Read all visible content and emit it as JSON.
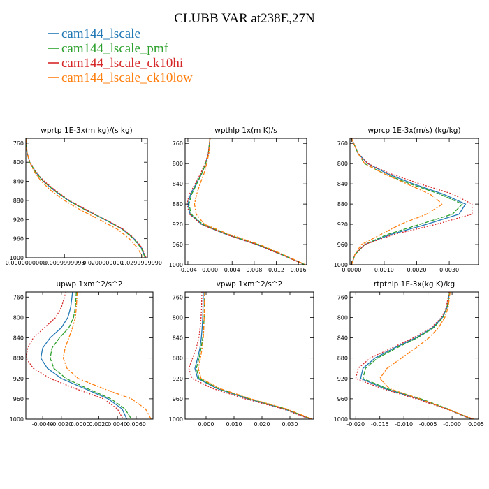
{
  "title": "CLUBB VAR at238E,27N",
  "legend": [
    {
      "name": "cam144_lscale",
      "color": "#1f77b4"
    },
    {
      "name": "cam144_lscale_pmf",
      "color": "#2ca02c"
    },
    {
      "name": "cam144_lscale_ck10hi",
      "color": "#d62728"
    },
    {
      "name": "cam144_lscale_ck10low",
      "color": "#ff7f0e"
    }
  ],
  "chart_data": [
    {
      "type": "line",
      "title": "wprtp  1E-3x(m kg)/(s kg)",
      "xlim": [
        0.0,
        0.0315
      ],
      "ylim": [
        1000,
        750
      ],
      "xticks": [
        0.0,
        0.0099999998,
        0.02,
        0.029999999
      ],
      "xtick_labels": [
        "0.0000000000",
        "0.0099999998",
        "0.0200000000",
        "0.0299999990"
      ],
      "yticks": [
        760,
        800,
        840,
        880,
        920,
        960,
        1000
      ],
      "pressure": [
        750,
        780,
        800,
        820,
        840,
        860,
        880,
        900,
        920,
        940,
        960,
        980,
        1000
      ],
      "series": [
        {
          "values": [
            0.0,
            0.0003,
            0.001,
            0.0025,
            0.0045,
            0.0075,
            0.011,
            0.0155,
            0.0205,
            0.025,
            0.028,
            0.03,
            0.031
          ]
        },
        {
          "values": [
            0.0,
            0.0003,
            0.001,
            0.0025,
            0.0045,
            0.0075,
            0.011,
            0.0155,
            0.0205,
            0.025,
            0.0279,
            0.0299,
            0.0309
          ]
        },
        {
          "values": [
            0.0,
            0.0003,
            0.0011,
            0.0027,
            0.0048,
            0.0078,
            0.0113,
            0.0158,
            0.0207,
            0.0252,
            0.0282,
            0.0302,
            0.0312
          ]
        },
        {
          "values": [
            0.0,
            0.0003,
            0.001,
            0.0022,
            0.004,
            0.0066,
            0.01,
            0.0142,
            0.019,
            0.0237,
            0.0268,
            0.029,
            0.0303
          ]
        }
      ]
    },
    {
      "type": "line",
      "title": "wpthlp  1x(m K)/s",
      "xlim": [
        -0.0045,
        0.0175
      ],
      "ylim": [
        1000,
        750
      ],
      "xticks": [
        -0.004,
        0.0,
        0.004,
        0.008,
        0.012,
        0.016
      ],
      "xtick_labels": [
        "-0.004",
        "0.000",
        "0.004",
        "0.008",
        "0.012",
        "0.016"
      ],
      "yticks": [
        760,
        800,
        840,
        880,
        920,
        960,
        1000
      ],
      "pressure": [
        750,
        780,
        800,
        820,
        840,
        860,
        880,
        900,
        920,
        940,
        960,
        980,
        1000
      ],
      "series": [
        {
          "values": [
            0.0,
            -0.0003,
            -0.0008,
            -0.0015,
            -0.0025,
            -0.0035,
            -0.004,
            -0.0036,
            -0.0015,
            0.003,
            0.0085,
            0.013,
            0.0172
          ]
        },
        {
          "values": [
            0.0,
            -0.0003,
            -0.0008,
            -0.0015,
            -0.0024,
            -0.0033,
            -0.0038,
            -0.0034,
            -0.0013,
            0.0032,
            0.0087,
            0.0131,
            0.0172
          ]
        },
        {
          "values": [
            0.0,
            -0.0003,
            -0.0009,
            -0.0017,
            -0.0027,
            -0.0037,
            -0.0042,
            -0.0037,
            -0.0016,
            0.0029,
            0.0084,
            0.0129,
            0.0172
          ]
        },
        {
          "values": [
            0.0,
            -0.0002,
            -0.0006,
            -0.0011,
            -0.0018,
            -0.0024,
            -0.0028,
            -0.0025,
            -0.001,
            0.0035,
            0.009,
            0.0133,
            0.0173
          ]
        }
      ]
    },
    {
      "type": "line",
      "title": "wprcp  1E-3x(m/s) (kg/kg)",
      "xlim": [
        -5e-05,
        0.0039
      ],
      "ylim": [
        1000,
        750
      ],
      "xticks": [
        0.0,
        0.001,
        0.002,
        0.003
      ],
      "xtick_labels": [
        "0.0000",
        "0.0010",
        "0.0020",
        "0.0030"
      ],
      "yticks": [
        760,
        800,
        840,
        880,
        920,
        960,
        1000
      ],
      "pressure": [
        750,
        780,
        800,
        820,
        840,
        860,
        880,
        900,
        920,
        940,
        960,
        980,
        1000
      ],
      "series": [
        {
          "values": [
            0.0,
            0.0002,
            0.0005,
            0.0011,
            0.0019,
            0.0028,
            0.0035,
            0.0033,
            0.0023,
            0.0012,
            0.0004,
            0.0001,
            0.0
          ]
        },
        {
          "values": [
            0.0,
            0.0002,
            0.0004,
            0.001,
            0.0018,
            0.0027,
            0.0034,
            0.0031,
            0.0021,
            0.0011,
            0.0004,
            0.0001,
            0.0
          ]
        },
        {
          "values": [
            0.0,
            0.0002,
            0.0005,
            0.0012,
            0.0021,
            0.0031,
            0.0037,
            0.0037,
            0.0026,
            0.0013,
            0.0004,
            0.0001,
            0.0
          ]
        },
        {
          "values": [
            0.0,
            0.0002,
            0.0004,
            0.001,
            0.0017,
            0.0024,
            0.0028,
            0.0023,
            0.0015,
            0.0009,
            0.0003,
            0.0001,
            0.0
          ]
        }
      ]
    },
    {
      "type": "line",
      "title": "upwp  1xm^2/s^2",
      "xlim": [
        -0.0058,
        0.0078
      ],
      "ylim": [
        1000,
        750
      ],
      "xticks": [
        -0.004,
        -0.002,
        0.0,
        0.002,
        0.004,
        0.006
      ],
      "xtick_labels": [
        "-0.0040",
        "-0.0020",
        "0.0000",
        "0.0020",
        "0.0040",
        "0.0060"
      ],
      "yticks": [
        760,
        800,
        840,
        880,
        920,
        960,
        1000
      ],
      "pressure": [
        750,
        780,
        800,
        820,
        840,
        860,
        880,
        900,
        920,
        940,
        960,
        980,
        1000
      ],
      "series": [
        {
          "values": [
            -0.0008,
            -0.001,
            -0.0013,
            -0.002,
            -0.0032,
            -0.004,
            -0.0042,
            -0.0035,
            -0.002,
            0.0005,
            0.003,
            0.0045,
            0.005
          ]
        },
        {
          "values": [
            -0.0004,
            -0.0005,
            -0.0007,
            -0.0012,
            -0.0022,
            -0.003,
            -0.0032,
            -0.0028,
            -0.0015,
            0.0008,
            0.0033,
            0.0048,
            0.0055
          ]
        },
        {
          "values": [
            -0.0015,
            -0.002,
            -0.0026,
            -0.0038,
            -0.005,
            -0.0056,
            -0.0058,
            -0.005,
            -0.0032,
            -0.0005,
            0.0025,
            0.004,
            0.0046
          ]
        },
        {
          "values": [
            -0.0003,
            -0.0004,
            -0.0005,
            -0.0008,
            -0.0012,
            -0.0016,
            -0.0018,
            -0.0014,
            -0.0002,
            0.0025,
            0.0055,
            0.007,
            0.0076
          ]
        }
      ]
    },
    {
      "type": "line",
      "title": "vpwp  1xm^2/s^2",
      "xlim": [
        -0.0075,
        0.0385
      ],
      "ylim": [
        1000,
        750
      ],
      "xticks": [
        0.0,
        0.01,
        0.02,
        0.03
      ],
      "xtick_labels": [
        "0.000",
        "0.010",
        "0.020",
        "0.030"
      ],
      "yticks": [
        760,
        800,
        840,
        880,
        920,
        960,
        1000
      ],
      "pressure": [
        750,
        780,
        800,
        820,
        840,
        860,
        880,
        900,
        920,
        940,
        960,
        980,
        1000
      ],
      "series": [
        {
          "values": [
            -0.001,
            -0.0011,
            -0.0012,
            -0.0014,
            -0.0017,
            -0.0022,
            -0.003,
            -0.004,
            -0.003,
            0.004,
            0.015,
            0.028,
            0.0375
          ]
        },
        {
          "values": [
            -0.0005,
            -0.0006,
            -0.0007,
            -0.0009,
            -0.0012,
            -0.0018,
            -0.0025,
            -0.0035,
            -0.0025,
            0.0045,
            0.0155,
            0.0285,
            0.0378
          ]
        },
        {
          "values": [
            -0.0015,
            -0.0016,
            -0.0018,
            -0.0021,
            -0.0026,
            -0.0035,
            -0.0048,
            -0.0062,
            -0.005,
            0.0025,
            0.014,
            0.0275,
            0.0372
          ]
        },
        {
          "values": [
            -0.0005,
            -0.0006,
            -0.0007,
            -0.0008,
            -0.001,
            -0.0014,
            -0.002,
            -0.0028,
            -0.0018,
            0.005,
            0.016,
            0.0288,
            0.038
          ]
        }
      ]
    },
    {
      "type": "line",
      "title": "rtpthlp  1E-3x(kg K)/kg",
      "xlim": [
        -0.0212,
        0.0055
      ],
      "ylim": [
        1000,
        750
      ],
      "xticks": [
        -0.02,
        -0.015,
        -0.01,
        -0.005,
        0.0,
        0.005
      ],
      "xtick_labels": [
        "-0.020",
        "-0.015",
        "-0.010",
        "-0.005",
        "-0.000",
        "0.005"
      ],
      "yticks": [
        760,
        800,
        840,
        880,
        920,
        960,
        1000
      ],
      "pressure": [
        750,
        780,
        800,
        820,
        840,
        860,
        880,
        900,
        920,
        940,
        960,
        980,
        1000
      ],
      "series": [
        {
          "values": [
            -0.0005,
            -0.001,
            -0.002,
            -0.004,
            -0.0075,
            -0.012,
            -0.016,
            -0.0185,
            -0.019,
            -0.014,
            -0.007,
            -0.001,
            0.004
          ]
        },
        {
          "values": [
            -0.0005,
            -0.001,
            -0.0019,
            -0.0038,
            -0.0072,
            -0.0115,
            -0.0155,
            -0.018,
            -0.0185,
            -0.0135,
            -0.0065,
            -0.0008,
            0.004
          ]
        },
        {
          "values": [
            -0.0006,
            -0.0012,
            -0.0022,
            -0.0043,
            -0.008,
            -0.0125,
            -0.017,
            -0.0195,
            -0.02,
            -0.0145,
            -0.0075,
            -0.0012,
            0.004
          ]
        },
        {
          "values": [
            -0.0004,
            -0.0008,
            -0.0015,
            -0.0028,
            -0.0048,
            -0.0075,
            -0.0105,
            -0.0135,
            -0.015,
            -0.013,
            -0.0068,
            -0.001,
            0.0045
          ]
        }
      ]
    }
  ]
}
